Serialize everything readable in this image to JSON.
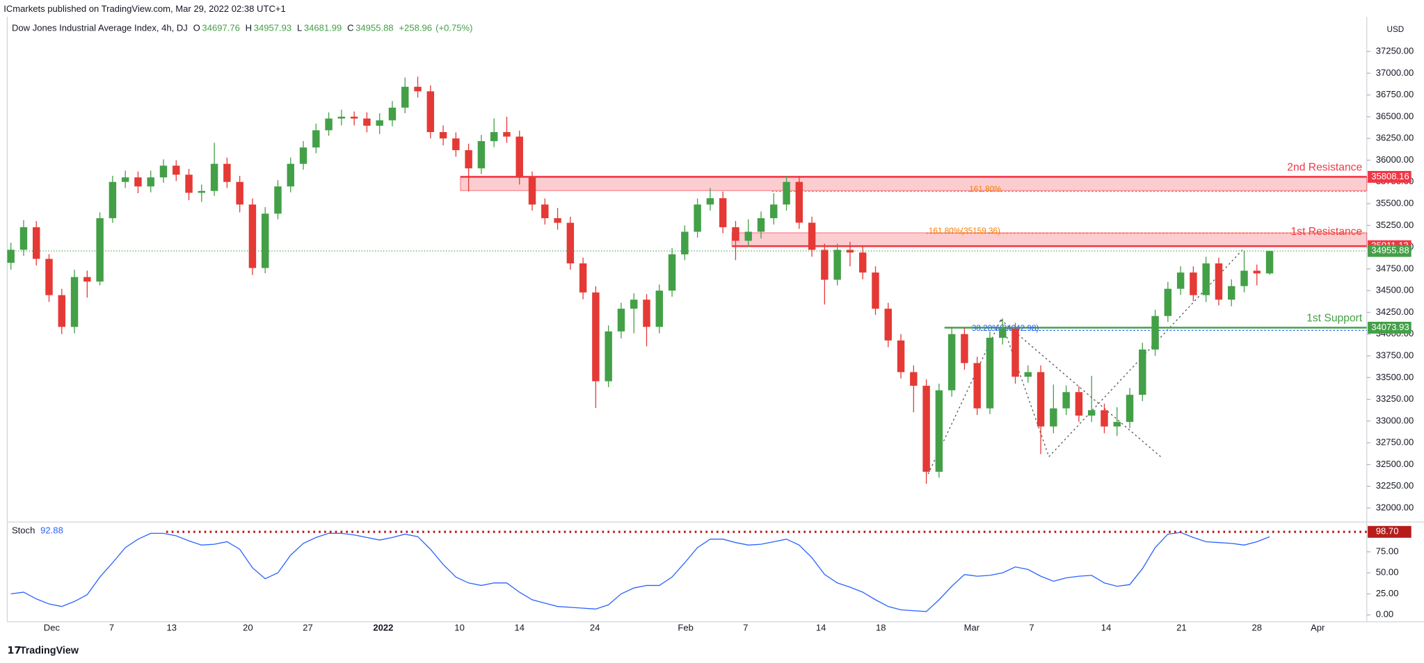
{
  "header": {
    "publisher": "ICmarkets published on TradingView.com, Mar 29, 2022 02:38 UTC+1",
    "brand": "TradingView"
  },
  "chart_data": {
    "type": "candlestick",
    "title": "Dow Jones Industrial Average Index, 4h, DJ",
    "ohlc_prefixes": [
      "O",
      "H",
      "L",
      "C"
    ],
    "change_label": "+258.96",
    "change_pct_label": "(+0.75%)",
    "currency": "USD",
    "up_color": "#43a047",
    "down_color": "#e53935",
    "open": [
      34820,
      34970,
      35229,
      34865,
      34448,
      34083,
      34656,
      34604,
      35333,
      35750,
      35802,
      35698,
      35802,
      35937,
      35833,
      35625,
      35646,
      35958,
      35750,
      35490,
      34760,
      35385,
      35698,
      35958,
      36146,
      36344,
      36479,
      36500,
      36479,
      36396,
      36458,
      36604,
      36844,
      36792,
      36323,
      36250,
      36115,
      35906,
      36219,
      36323,
      36271,
      35802,
      35490,
      35333,
      35280,
      34813,
      34479,
      33458,
      34031,
      34292,
      34396,
      34083,
      34500,
      34917,
      35177,
      35490,
      35563,
      35229,
      35073,
      35177,
      35333,
      35490,
      35750,
      35281,
      34969,
      34625,
      34969,
      34938,
      34708,
      34292,
      33927,
      33563,
      33406,
      32417,
      33354,
      34000,
      33667,
      33146,
      33958,
      34063,
      33510,
      33563,
      32938,
      33146,
      33333,
      33063,
      33125,
      32938,
      32990,
      33302,
      33823,
      34208,
      34521,
      34708,
      34448,
      34813,
      34396,
      34552,
      34729,
      34697.76
    ],
    "high": [
      35050,
      35310,
      35300,
      34920,
      34520,
      34740,
      34730,
      35400,
      35820,
      35880,
      35870,
      35880,
      36010,
      36000,
      35900,
      35720,
      36200,
      36030,
      35820,
      35560,
      35460,
      35770,
      36030,
      36220,
      36420,
      36550,
      36580,
      36560,
      36550,
      36540,
      36680,
      36950,
      36960,
      36860,
      36400,
      36320,
      36190,
      36290,
      36480,
      36500,
      36340,
      35870,
      35560,
      35450,
      35350,
      34880,
      34550,
      34100,
      34360,
      34470,
      34460,
      34570,
      34990,
      35250,
      35560,
      35680,
      35640,
      35300,
      35320,
      35410,
      35620,
      35820,
      35820,
      35350,
      35040,
      35040,
      35060,
      35010,
      34780,
      34360,
      34000,
      33640,
      33480,
      33430,
      34080,
      34070,
      33740,
      34030,
      34180,
      34130,
      33640,
      33640,
      33420,
      33410,
      33400,
      33520,
      33200,
      33160,
      33380,
      33900,
      34280,
      34600,
      34780,
      34780,
      34890,
      34880,
      34630,
      34960,
      34800,
      34957.93
    ],
    "low": [
      34740,
      34900,
      34790,
      34370,
      34000,
      34010,
      34420,
      34560,
      35280,
      35680,
      35620,
      35630,
      35740,
      35760,
      35540,
      35520,
      35590,
      35680,
      35400,
      34680,
      34700,
      35320,
      35630,
      35890,
      36080,
      36280,
      36400,
      36400,
      36320,
      36300,
      36390,
      36540,
      36720,
      36250,
      36170,
      36040,
      35640,
      35840,
      36150,
      36200,
      35720,
      35420,
      35260,
      35200,
      34740,
      34400,
      33150,
      33390,
      33950,
      34010,
      33860,
      34010,
      34430,
      34850,
      35110,
      35420,
      35160,
      34850,
      35000,
      35100,
      35260,
      35420,
      35210,
      34890,
      34340,
      34560,
      34780,
      34630,
      34220,
      33850,
      33490,
      33100,
      32280,
      32350,
      33280,
      33590,
      33070,
      33080,
      33880,
      33430,
      33440,
      32620,
      32860,
      33070,
      32990,
      32990,
      32860,
      32830,
      32920,
      33230,
      33750,
      34140,
      34450,
      34380,
      34370,
      34330,
      34320,
      34480,
      34560,
      34681.99
    ],
    "close": [
      34970,
      35229,
      34865,
      34448,
      34083,
      34656,
      34604,
      35333,
      35750,
      35802,
      35698,
      35802,
      35937,
      35833,
      35625,
      35646,
      35958,
      35750,
      35490,
      34760,
      35385,
      35698,
      35958,
      36146,
      36344,
      36479,
      36500,
      36479,
      36396,
      36458,
      36604,
      36844,
      36792,
      36323,
      36250,
      36115,
      35906,
      36219,
      36323,
      36271,
      35802,
      35490,
      35333,
      35280,
      34813,
      34479,
      33458,
      34031,
      34292,
      34396,
      34083,
      34500,
      34917,
      35177,
      35490,
      35563,
      35229,
      35073,
      35177,
      35333,
      35490,
      35750,
      35281,
      34969,
      34625,
      34969,
      34938,
      34708,
      34292,
      33927,
      33563,
      33406,
      32417,
      33354,
      34000,
      33667,
      33146,
      33958,
      34063,
      33510,
      33563,
      32938,
      33146,
      33333,
      33063,
      33125,
      32938,
      32990,
      33302,
      33823,
      34208,
      34521,
      34708,
      34448,
      34813,
      34396,
      34552,
      34729,
      34697.76,
      34955.88
    ],
    "ylim": [
      31860,
      37650
    ],
    "yticks": [
      {
        "value": 32000,
        "label": "32000.00"
      },
      {
        "value": 32250,
        "label": "32250.00"
      },
      {
        "value": 32500,
        "label": "32500.00"
      },
      {
        "value": 32750,
        "label": "32750.00"
      },
      {
        "value": 33000,
        "label": "33000.00"
      },
      {
        "value": 33250,
        "label": "33250.00"
      },
      {
        "value": 33500,
        "label": "33500.00"
      },
      {
        "value": 33750,
        "label": "33750.00"
      },
      {
        "value": 34000,
        "label": "34000.00"
      },
      {
        "value": 34250,
        "label": "34250.00"
      },
      {
        "value": 34500,
        "label": "34500.00"
      },
      {
        "value": 34750,
        "label": "34750.00"
      },
      {
        "value": 35000,
        "label": "35000.00"
      },
      {
        "value": 35250,
        "label": "35250.00"
      },
      {
        "value": 35500,
        "label": "35500.00"
      },
      {
        "value": 35750,
        "label": "35750.00"
      },
      {
        "value": 36000,
        "label": "36000.00"
      },
      {
        "value": 36250,
        "label": "36250.00"
      },
      {
        "value": 36500,
        "label": "36500.00"
      },
      {
        "value": 36750,
        "label": "36750.00"
      },
      {
        "value": 37000,
        "label": "37000.00"
      },
      {
        "value": 37250,
        "label": "37250.00"
      }
    ],
    "x_labels": [
      "Dec",
      "7",
      "13",
      "20",
      "27",
      "2022",
      "10",
      "14",
      "24",
      "Feb",
      "7",
      "14",
      "18",
      "Mar",
      "7",
      "14",
      "21",
      "28",
      "Apr"
    ],
    "levels": [
      {
        "name": "2nd Resistance",
        "value": 35808.16,
        "zone": 35650,
        "color": "#f23645"
      },
      {
        "name": "1st Resistance",
        "value": 35011.13,
        "zone": 35165,
        "color": "#f23645"
      },
      {
        "name": "1st Support",
        "value": 34073.93,
        "color": "#43a047"
      }
    ],
    "fibs": [
      {
        "label": "161.80%",
        "value": 35640,
        "color": "#f57c00"
      },
      {
        "label": "161.80%(35159.36)",
        "value": 35159.36,
        "color": "#f57c00"
      },
      {
        "label": "38.20%(34042.98)",
        "value": 34042.98,
        "color": "#2962ff"
      }
    ],
    "last_color": "#43a047",
    "stoch": {
      "name": "Stoch",
      "color": "#2962ff",
      "values": [
        25,
        27,
        19,
        13,
        10,
        16,
        24,
        45,
        62,
        80,
        90,
        97,
        97,
        94,
        88,
        83,
        84,
        87,
        78,
        56,
        43,
        50,
        71,
        85,
        92,
        97,
        97,
        95,
        92,
        89,
        92,
        96,
        93,
        78,
        60,
        45,
        38,
        35,
        38,
        38,
        27,
        18,
        14,
        10,
        9,
        8,
        7,
        12,
        25,
        32,
        35,
        35,
        45,
        62,
        80,
        90,
        90,
        86,
        83,
        84,
        87,
        90,
        83,
        68,
        48,
        38,
        33,
        27,
        18,
        10,
        6,
        5,
        4,
        18,
        34,
        48,
        46,
        47,
        50,
        57,
        54,
        46,
        40,
        44,
        46,
        47,
        38,
        34,
        36,
        55,
        80,
        96,
        98,
        92,
        87,
        86,
        85,
        83,
        87,
        92.88
      ],
      "ylim": [
        -5,
        105
      ],
      "yticks": [
        {
          "value": 0,
          "label": "0.00"
        },
        {
          "value": 25,
          "label": "25.00"
        },
        {
          "value": 50,
          "label": "50.00"
        },
        {
          "value": 75,
          "label": "75.00"
        }
      ],
      "level": {
        "value": 98.7,
        "label": "98.70",
        "color": "#b71c1c"
      }
    }
  }
}
